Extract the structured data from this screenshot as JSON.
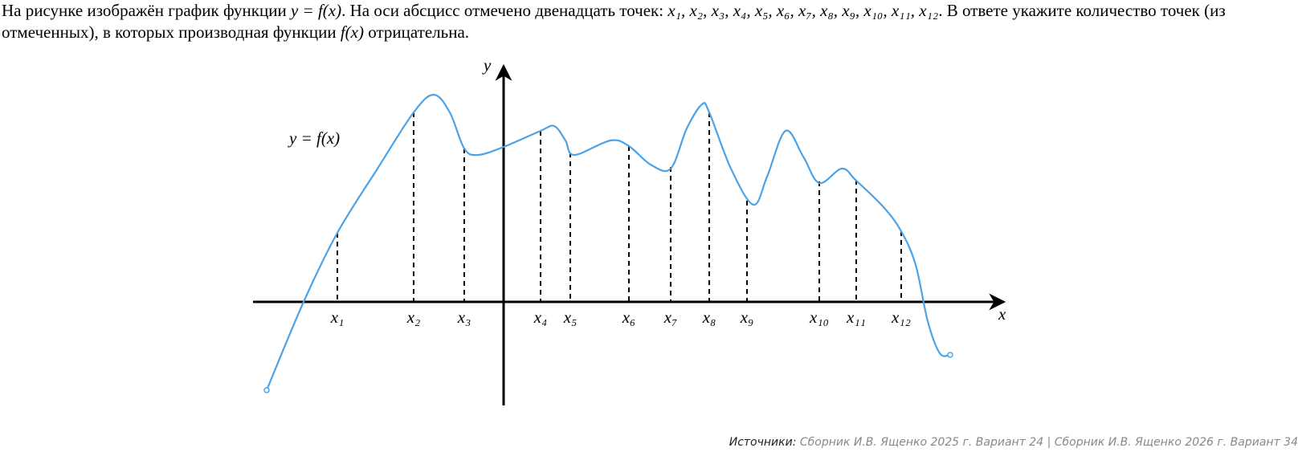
{
  "problem": {
    "parts": [
      "На рисунке изображён график функции ",
      "y = f(x)",
      ". На оси абсцисс отмечено двенадцать точек: ",
      "x₁, x₂, x₃, x₄, x₅, x₆, x₇, x₈, x₉, x₁₀, x₁₁, x₁₂",
      ". В ответе укажите количество точек (из отмеченных), в которых производная функции ",
      "f(x)",
      " отрицательна."
    ]
  },
  "graph": {
    "x_axis_label": "x",
    "y_axis_label": "y",
    "curve_label": "y = f(x)",
    "points": [
      "x₁",
      "x₂",
      "x₃",
      "x₄",
      "x₅",
      "x₆",
      "x₇",
      "x₈",
      "x₉",
      "x₁₀",
      "x₁₁",
      "x₁₂"
    ]
  },
  "sources": {
    "label": "Источники:",
    "text": "Сборник И.В. Ященко 2025 г. Вариант 24 | Сборник И.В. Ященко 2026 г. Вариант 34"
  }
}
